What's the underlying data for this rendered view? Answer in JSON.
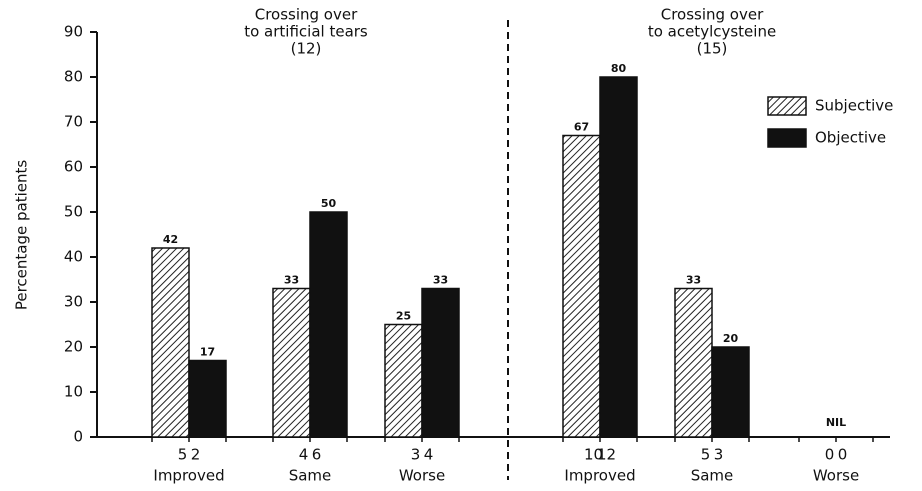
{
  "chart_data": {
    "type": "bar",
    "y_label": "Percentage patients",
    "panels": [
      {
        "title": [
          "Crossing over",
          "to artificial tears",
          "(12)"
        ]
      },
      {
        "title": [
          "Crossing over",
          "to acetylcysteine",
          "(15)"
        ]
      }
    ],
    "categories": [
      "Improved",
      "Same",
      "Worse",
      "Improved",
      "Same",
      "Worse"
    ],
    "series": [
      {
        "name": "Subjective",
        "color": "hatched",
        "values": [
          42,
          33,
          25,
          67,
          33,
          0
        ],
        "value_labels": [
          "42",
          "33",
          "25",
          "67",
          "33",
          null
        ],
        "counts": [
          5,
          4,
          3,
          10,
          5,
          0
        ]
      },
      {
        "name": "Objective",
        "color": "#111111",
        "values": [
          17,
          50,
          33,
          80,
          20,
          0
        ],
        "value_labels": [
          "17",
          "50",
          "33",
          "80",
          "20",
          null
        ],
        "counts": [
          2,
          6,
          4,
          12,
          3,
          0
        ]
      }
    ],
    "annotations": [
      {
        "text": "NIL",
        "category": 5
      }
    ],
    "ylim": [
      0,
      90
    ],
    "yticks": [
      0,
      10,
      20,
      30,
      40,
      50,
      60,
      70,
      80,
      90
    ],
    "legend": "right"
  }
}
